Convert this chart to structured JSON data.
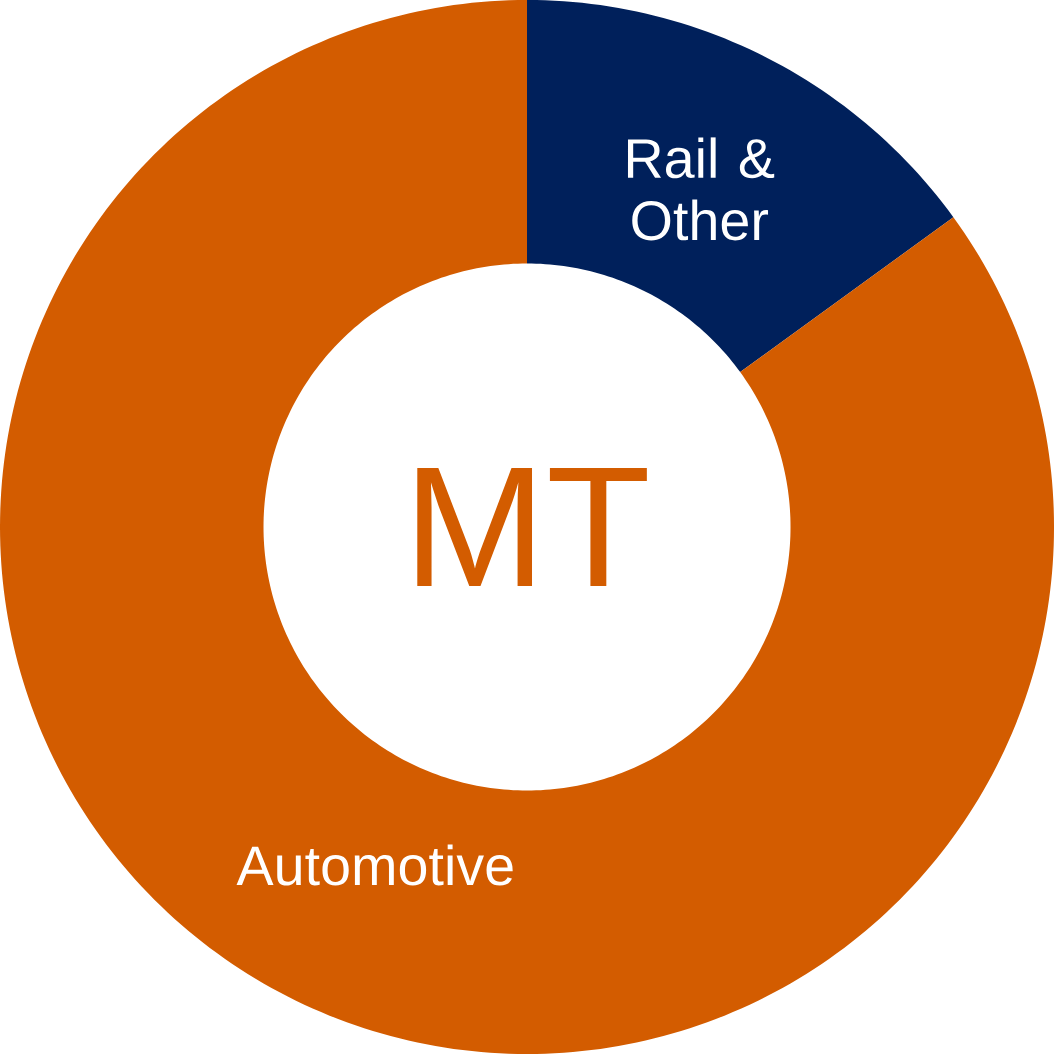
{
  "chart_data": {
    "type": "donut",
    "categories": [
      "Rail & Other",
      "Automotive"
    ],
    "values": [
      15,
      85
    ],
    "colors": [
      "#00205b",
      "#d35c00"
    ],
    "annotations": [
      "MT"
    ]
  }
}
